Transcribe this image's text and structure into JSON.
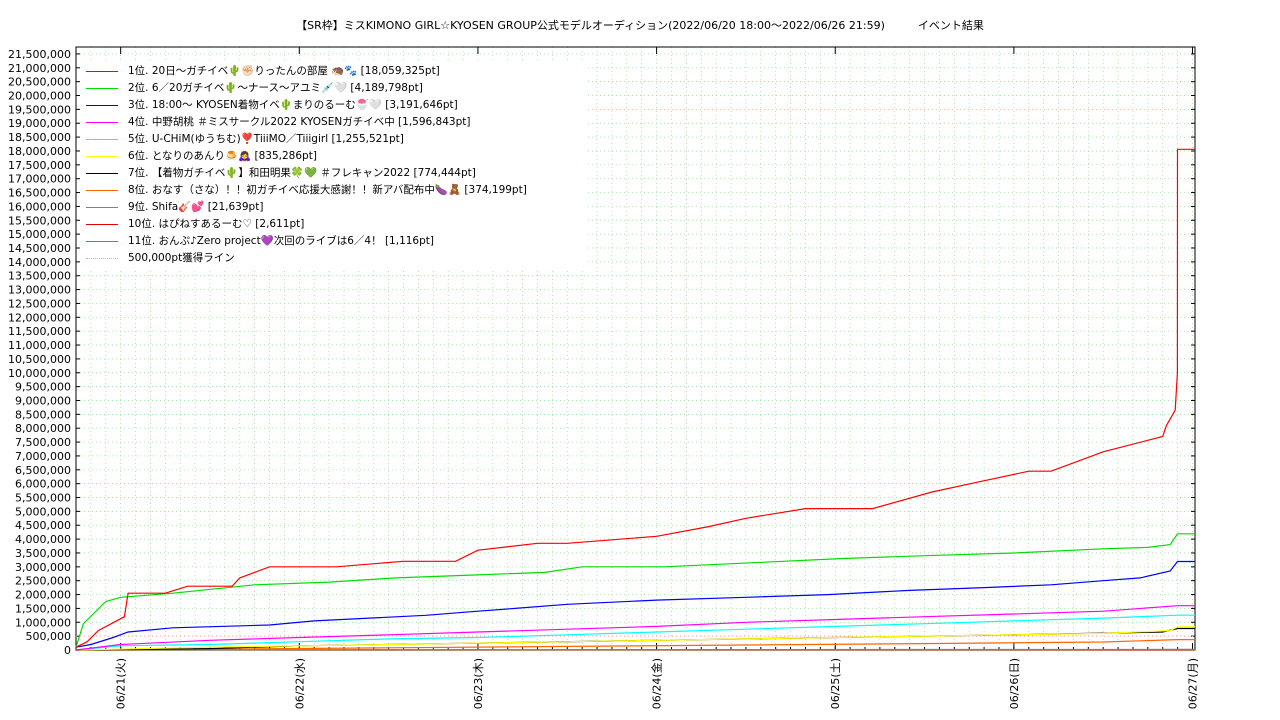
{
  "chart_data": {
    "type": "line",
    "title": "【SR枠】ミスKIMONO GIRL☆KYOSEN GROUP公式モデルオーディション(2022/06/20 18:00〜2022/06/26 21:59)　　　イベント結果",
    "xlabel": "",
    "ylabel": "",
    "x_ticks": [
      "06/21(火)",
      "06/22(水)",
      "06/23(木)",
      "06/24(金)",
      "06/25(土)",
      "06/26(日)",
      "06/27(月)"
    ],
    "x_range": [
      "2022-06-20 18:00",
      "2022-06-27 00:20"
    ],
    "ylim": [
      0,
      21750000
    ],
    "y_tick_step": 500000,
    "y_ticks": [
      "0",
      "500,000",
      "1,000,000",
      "1,500,000",
      "2,000,000",
      "2,500,000",
      "3,000,000",
      "3,500,000",
      "4,000,000",
      "4,500,000",
      "5,000,000",
      "5,500,000",
      "6,000,000",
      "6,500,000",
      "7,000,000",
      "7,500,000",
      "8,000,000",
      "8,500,000",
      "9,000,000",
      "9,500,000",
      "10,000,000",
      "10,500,000",
      "11,000,000",
      "11,500,000",
      "12,000,000",
      "12,500,000",
      "13,000,000",
      "13,500,000",
      "14,000,000",
      "14,500,000",
      "15,000,000",
      "15,500,000",
      "16,000,000",
      "16,500,000",
      "17,000,000",
      "17,500,000",
      "18,000,000",
      "18,500,000",
      "19,000,000",
      "19,500,000",
      "20,000,000",
      "20,500,000",
      "21,000,000",
      "21,500,000"
    ],
    "grid": true,
    "legend_position": "top-left",
    "series": [
      {
        "name": "1位. 20日〜ガチイベ🌵✊🏻りったんの部屋 🦔🐾 [18,059,325pt]",
        "color": "#ff0000",
        "style": "solid",
        "x": [
          "2022-06-20 18:00",
          "2022-06-20 19:30",
          "2022-06-20 21:00",
          "2022-06-21 00:30",
          "2022-06-21 01:00",
          "2022-06-21 06:00",
          "2022-06-21 09:00",
          "2022-06-21 15:00",
          "2022-06-21 16:00",
          "2022-06-21 20:00",
          "2022-06-22 05:00",
          "2022-06-22 14:00",
          "2022-06-22 21:00",
          "2022-06-23 00:00",
          "2022-06-23 08:00",
          "2022-06-23 12:00",
          "2022-06-24 00:00",
          "2022-06-24 07:00",
          "2022-06-24 12:00",
          "2022-06-24 20:00",
          "2022-06-25 05:00",
          "2022-06-25 13:00",
          "2022-06-25 19:00",
          "2022-06-26 02:00",
          "2022-06-26 05:00",
          "2022-06-26 12:00",
          "2022-06-26 20:00",
          "2022-06-26 20:30",
          "2022-06-26 21:40",
          "2022-06-26 21:58",
          "2022-06-26 21:59",
          "2022-06-27 00:20"
        ],
        "y": [
          100000,
          300000,
          700000,
          1200000,
          2050000,
          2050000,
          2300000,
          2300000,
          2600000,
          3000000,
          3000000,
          3200000,
          3200000,
          3600000,
          3850000,
          3850000,
          4100000,
          4450000,
          4750000,
          5100000,
          5100000,
          5700000,
          6050000,
          6450000,
          6450000,
          7150000,
          7700000,
          8100000,
          8650000,
          10000000,
          18059325,
          18059325
        ]
      },
      {
        "name": "2位. 6／20ガチイベ🌵〜ナース〜アユミ💉🤍 [4,189,798pt]",
        "color": "#00dd00",
        "style": "solid",
        "x": [
          "2022-06-20 18:00",
          "2022-06-20 19:00",
          "2022-06-20 22:00",
          "2022-06-21 00:00",
          "2022-06-21 07:00",
          "2022-06-21 18:00",
          "2022-06-22 04:00",
          "2022-06-22 13:00",
          "2022-06-22 23:00",
          "2022-06-23 09:00",
          "2022-06-23 14:00",
          "2022-06-24 01:00",
          "2022-06-24 13:00",
          "2022-06-25 01:00",
          "2022-06-25 12:00",
          "2022-06-26 00:00",
          "2022-06-26 12:00",
          "2022-06-26 18:00",
          "2022-06-26 21:00",
          "2022-06-26 21:59",
          "2022-06-27 00:20"
        ],
        "y": [
          100000,
          950000,
          1750000,
          1900000,
          2050000,
          2350000,
          2450000,
          2600000,
          2700000,
          2800000,
          3000000,
          3000000,
          3150000,
          3300000,
          3400000,
          3500000,
          3650000,
          3700000,
          3800000,
          4189798,
          4189798
        ]
      },
      {
        "name": "3位. 18:00〜 KYOSEN着物イベ🌵まりのるーむ🍧🤍 [3,191,646pt]",
        "color": "#0000ff",
        "style": "solid",
        "x": [
          "2022-06-20 18:00",
          "2022-06-20 20:00",
          "2022-06-20 23:00",
          "2022-06-21 01:00",
          "2022-06-21 07:00",
          "2022-06-21 20:00",
          "2022-06-22 02:00",
          "2022-06-22 17:00",
          "2022-06-23 00:00",
          "2022-06-23 05:00",
          "2022-06-23 12:00",
          "2022-06-24 00:00",
          "2022-06-24 12:00",
          "2022-06-24 23:00",
          "2022-06-25 10:00",
          "2022-06-25 20:00",
          "2022-06-26 05:00",
          "2022-06-26 12:00",
          "2022-06-26 17:00",
          "2022-06-26 21:00",
          "2022-06-26 21:59",
          "2022-06-27 00:20"
        ],
        "y": [
          100000,
          200000,
          450000,
          650000,
          800000,
          900000,
          1050000,
          1250000,
          1400000,
          1500000,
          1650000,
          1800000,
          1900000,
          2000000,
          2150000,
          2250000,
          2350000,
          2500000,
          2600000,
          2850000,
          3191646,
          3191646
        ]
      },
      {
        "name": "4位. 中野胡桃 ＃ミスサークル2022 KYOSENガチイベ中 [1,596,843pt]",
        "color": "#ff00ff",
        "style": "solid",
        "x": [
          "2022-06-20 18:00",
          "2022-06-21 00:00",
          "2022-06-21 12:00",
          "2022-06-22 00:00",
          "2022-06-22 12:00",
          "2022-06-23 00:00",
          "2022-06-23 12:00",
          "2022-06-24 00:00",
          "2022-06-24 12:00",
          "2022-06-25 00:00",
          "2022-06-25 12:00",
          "2022-06-26 00:00",
          "2022-06-26 12:00",
          "2022-06-26 21:59",
          "2022-06-27 00:20"
        ],
        "y": [
          0,
          200000,
          350000,
          450000,
          550000,
          650000,
          750000,
          850000,
          1000000,
          1100000,
          1200000,
          1300000,
          1400000,
          1596843,
          1596843
        ]
      },
      {
        "name": "5位. U-CHiM(ゆうちむ)❣️TiiiMO／Tiiigirl [1,255,521pt]",
        "color": "#00ffff",
        "style": "solid",
        "x": [
          "2022-06-20 18:00",
          "2022-06-21 00:00",
          "2022-06-21 12:00",
          "2022-06-22 00:00",
          "2022-06-22 12:00",
          "2022-06-23 00:00",
          "2022-06-23 12:00",
          "2022-06-24 00:00",
          "2022-06-24 12:00",
          "2022-06-25 00:00",
          "2022-06-25 12:00",
          "2022-06-26 00:00",
          "2022-06-26 12:00",
          "2022-06-26 21:59",
          "2022-06-27 00:20"
        ],
        "y": [
          0,
          150000,
          200000,
          300000,
          400000,
          450000,
          550000,
          650000,
          750000,
          850000,
          950000,
          1050000,
          1150000,
          1255521,
          1255521
        ]
      },
      {
        "name": "6位. となりのあんり🍮🙇‍♀️ [835,286pt]",
        "color": "#ffff00",
        "style": "solid",
        "x": [
          "2022-06-20 18:00",
          "2022-06-21 12:00",
          "2022-06-22 12:00",
          "2022-06-23 12:00",
          "2022-06-24 12:00",
          "2022-06-25 12:00",
          "2022-06-26 12:00",
          "2022-06-26 21:00",
          "2022-06-26 21:59",
          "2022-06-27 00:20"
        ],
        "y": [
          0,
          100000,
          200000,
          300000,
          400000,
          500000,
          600000,
          700000,
          835286,
          835286
        ]
      },
      {
        "name": "7位. 【着物ガチイベ🌵】和田明果🍀💚 ＃フレキャン2022 [774,444pt]",
        "color": "#000000",
        "style": "solid",
        "x": [
          "2022-06-20 18:00",
          "2022-06-21 12:00",
          "2022-06-22 00:00",
          "2022-06-23 00:00",
          "2022-06-24 00:00",
          "2022-06-25 00:00",
          "2022-06-26 00:00",
          "2022-06-26 20:00",
          "2022-06-26 21:59",
          "2022-06-27 00:20"
        ],
        "y": [
          0,
          50000,
          150000,
          250000,
          350000,
          450000,
          550000,
          650000,
          774444,
          774444
        ]
      },
      {
        "name": "8位. おなす（さな）！！初ガチイベ応援大感謝！！新アバ配布中🍆🧸 [374,199pt]",
        "color": "#ff6600",
        "style": "solid",
        "x": [
          "2022-06-20 18:00",
          "2022-06-21 12:00",
          "2022-06-22 12:00",
          "2022-06-23 12:00",
          "2022-06-24 12:00",
          "2022-06-25 12:00",
          "2022-06-26 12:00",
          "2022-06-26 21:59",
          "2022-06-27 00:20"
        ],
        "y": [
          0,
          30000,
          80000,
          130000,
          180000,
          230000,
          290000,
          374199,
          374199
        ]
      },
      {
        "name": "9位. Shifa🎸💕 [21,639pt]",
        "color": "#808080",
        "style": "solid",
        "x": [
          "2022-06-20 18:00",
          "2022-06-23 00:00",
          "2022-06-26 21:59",
          "2022-06-27 00:20"
        ],
        "y": [
          0,
          10000,
          21639,
          21639
        ]
      },
      {
        "name": "10位. はぴねすあるーむ♡ [2,611pt]",
        "color": "#dd0000",
        "style": "solid",
        "x": [
          "2022-06-20 18:00",
          "2022-06-26 21:59",
          "2022-06-27 00:20"
        ],
        "y": [
          0,
          2611,
          2611
        ]
      },
      {
        "name": "11位. おんぷ♪Zero project💜次回のライブは6／4！ [1,116pt]",
        "color": "#00cc00",
        "style": "solid",
        "x": [
          "2022-06-20 18:00",
          "2022-06-26 21:59",
          "2022-06-27 00:20"
        ],
        "y": [
          0,
          1116,
          1116
        ]
      },
      {
        "name": "500,000pt獲得ライン",
        "color": "#ff9999",
        "style": "dotted",
        "x": [
          "2022-06-20 18:00",
          "2022-06-27 00:20"
        ],
        "y": [
          500000,
          500000
        ]
      }
    ]
  }
}
